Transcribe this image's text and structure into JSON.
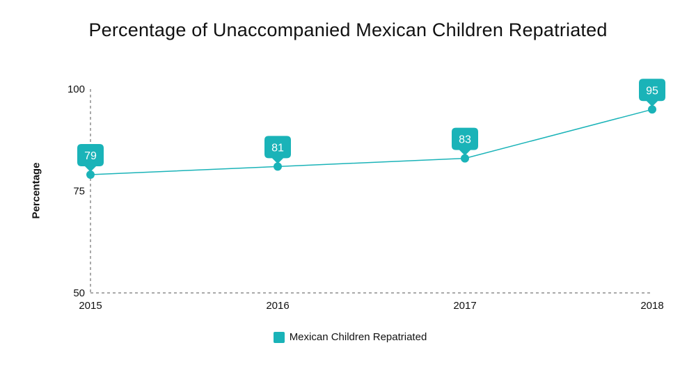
{
  "chart_data": {
    "type": "line",
    "title": "Percentage of Unaccompanied Mexican Children Repatriated",
    "xlabel": "",
    "ylabel": "Percentage",
    "categories": [
      "2015",
      "2016",
      "2017",
      "2018"
    ],
    "series": [
      {
        "name": "Mexican Children Repatriated",
        "values": [
          79,
          81,
          83,
          95
        ],
        "data_labels": [
          "79",
          "81",
          "83",
          "95"
        ],
        "color": "#1ab3b8"
      }
    ],
    "ylim": [
      50,
      100
    ],
    "yticks": [
      "50",
      "75",
      "100"
    ],
    "grid": false,
    "legend": "bottom"
  }
}
